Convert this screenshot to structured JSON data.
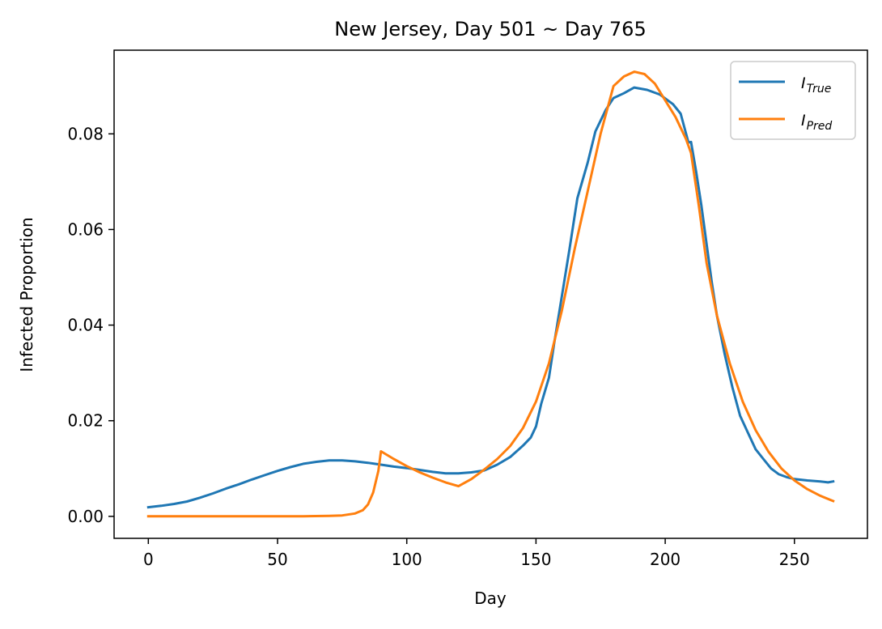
{
  "chart_data": {
    "type": "line",
    "title": "New Jersey, Day 501 ~ Day 765",
    "xlabel": "Day",
    "ylabel": "Infected Proportion",
    "xlim": [
      -13.25,
      278.25
    ],
    "ylim": [
      -0.0046,
      0.0975
    ],
    "xticks": [
      0,
      50,
      100,
      150,
      200,
      250
    ],
    "xtick_labels": [
      "0",
      "50",
      "100",
      "150",
      "200",
      "250"
    ],
    "yticks": [
      0.0,
      0.02,
      0.04,
      0.06,
      0.08
    ],
    "ytick_labels": [
      "0.00",
      "0.02",
      "0.04",
      "0.06",
      "0.08"
    ],
    "grid": false,
    "legend_position": "top-right",
    "series": [
      {
        "name": "True",
        "legend_main": "I",
        "legend_sub": "True",
        "color": "#1f77b4",
        "points": [
          [
            0,
            0.0019
          ],
          [
            5,
            0.0022
          ],
          [
            10,
            0.0026
          ],
          [
            15,
            0.0031
          ],
          [
            20,
            0.0039
          ],
          [
            25,
            0.0048
          ],
          [
            30,
            0.0058
          ],
          [
            35,
            0.0067
          ],
          [
            40,
            0.0077
          ],
          [
            45,
            0.0086
          ],
          [
            50,
            0.0095
          ],
          [
            55,
            0.0103
          ],
          [
            60,
            0.011
          ],
          [
            65,
            0.0114
          ],
          [
            70,
            0.0117
          ],
          [
            75,
            0.0117
          ],
          [
            80,
            0.0115
          ],
          [
            85,
            0.0112
          ],
          [
            90,
            0.0108
          ],
          [
            95,
            0.0104
          ],
          [
            100,
            0.0101
          ],
          [
            105,
            0.0097
          ],
          [
            110,
            0.0093
          ],
          [
            115,
            0.009
          ],
          [
            120,
            0.009
          ],
          [
            125,
            0.0092
          ],
          [
            130,
            0.0096
          ],
          [
            135,
            0.0108
          ],
          [
            140,
            0.0124
          ],
          [
            145,
            0.0148
          ],
          [
            148,
            0.0165
          ],
          [
            150,
            0.0188
          ],
          [
            152,
            0.0235
          ],
          [
            155,
            0.029
          ],
          [
            157,
            0.036
          ],
          [
            160,
            0.046
          ],
          [
            163,
            0.056
          ],
          [
            166,
            0.0665
          ],
          [
            170,
            0.074
          ],
          [
            173,
            0.0805
          ],
          [
            177,
            0.085
          ],
          [
            180,
            0.0875
          ],
          [
            184,
            0.0885
          ],
          [
            188,
            0.0897
          ],
          [
            193,
            0.0892
          ],
          [
            198,
            0.0882
          ],
          [
            203,
            0.0862
          ],
          [
            206,
            0.0842
          ],
          [
            209,
            0.0782
          ],
          [
            210,
            0.0783
          ],
          [
            212,
            0.072
          ],
          [
            214,
            0.065
          ],
          [
            216,
            0.057
          ],
          [
            218,
            0.049
          ],
          [
            220,
            0.042
          ],
          [
            223,
            0.034
          ],
          [
            226,
            0.027
          ],
          [
            229,
            0.021
          ],
          [
            232,
            0.0175
          ],
          [
            235,
            0.014
          ],
          [
            238,
            0.012
          ],
          [
            241,
            0.01
          ],
          [
            244,
            0.0088
          ],
          [
            247,
            0.0082
          ],
          [
            250,
            0.0078
          ],
          [
            255,
            0.0075
          ],
          [
            260,
            0.0073
          ],
          [
            263,
            0.0071
          ],
          [
            265,
            0.0073
          ]
        ]
      },
      {
        "name": "Pred",
        "legend_main": "I",
        "legend_sub": "Pred",
        "color": "#ff7f0e",
        "points": [
          [
            0,
            0.0
          ],
          [
            10,
            0.0
          ],
          [
            20,
            0.0
          ],
          [
            30,
            0.0
          ],
          [
            40,
            0.0
          ],
          [
            50,
            0.0
          ],
          [
            60,
            0.0
          ],
          [
            70,
            0.0001
          ],
          [
            75,
            0.0002
          ],
          [
            80,
            0.0006
          ],
          [
            83,
            0.0013
          ],
          [
            85,
            0.0025
          ],
          [
            87,
            0.005
          ],
          [
            89,
            0.0095
          ],
          [
            90,
            0.0136
          ],
          [
            95,
            0.012
          ],
          [
            100,
            0.0105
          ],
          [
            105,
            0.0092
          ],
          [
            110,
            0.0081
          ],
          [
            115,
            0.0071
          ],
          [
            120,
            0.0063
          ],
          [
            125,
            0.0078
          ],
          [
            130,
            0.0098
          ],
          [
            135,
            0.012
          ],
          [
            140,
            0.0147
          ],
          [
            145,
            0.0185
          ],
          [
            150,
            0.024
          ],
          [
            155,
            0.032
          ],
          [
            160,
            0.043
          ],
          [
            165,
            0.056
          ],
          [
            170,
            0.068
          ],
          [
            175,
            0.08
          ],
          [
            180,
            0.09
          ],
          [
            184,
            0.092
          ],
          [
            188,
            0.093
          ],
          [
            192,
            0.0925
          ],
          [
            196,
            0.0905
          ],
          [
            200,
            0.087
          ],
          [
            204,
            0.0835
          ],
          [
            208,
            0.079
          ],
          [
            210,
            0.076
          ],
          [
            213,
            0.065
          ],
          [
            216,
            0.053
          ],
          [
            220,
            0.042
          ],
          [
            225,
            0.032
          ],
          [
            230,
            0.024
          ],
          [
            235,
            0.018
          ],
          [
            240,
            0.0135
          ],
          [
            245,
            0.01
          ],
          [
            250,
            0.0075
          ],
          [
            255,
            0.0057
          ],
          [
            260,
            0.0043
          ],
          [
            265,
            0.0032
          ]
        ]
      }
    ]
  }
}
